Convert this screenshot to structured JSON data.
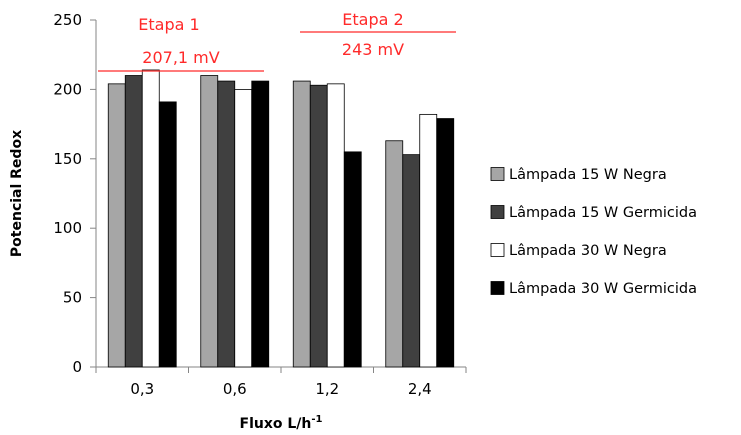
{
  "chart_data": {
    "type": "bar",
    "title": "",
    "xlabel_main": "Fluxo L/h",
    "xlabel_sup": "-1",
    "ylabel": "Potencial Redox",
    "ylim": [
      0,
      250
    ],
    "yticks": [
      "0",
      "50",
      "100",
      "150",
      "200",
      "250"
    ],
    "categories": [
      "0,3",
      "0,6",
      "1,2",
      "2,4"
    ],
    "series": [
      {
        "name": "Lâmpada 15 W Negra",
        "color": "#a6a6a6",
        "values": [
          204,
          210,
          206,
          163
        ]
      },
      {
        "name": "Lâmpada 15 W Germicida",
        "color": "#404040",
        "values": [
          210,
          206,
          203,
          153
        ]
      },
      {
        "name": "Lâmpada 30 W Negra",
        "color": "#ffffff",
        "values": [
          214,
          200,
          204,
          182
        ]
      },
      {
        "name": "Lâmpada 30 W Germicida",
        "color": "#000000",
        "values": [
          191,
          206,
          155,
          179
        ]
      }
    ],
    "annotations": [
      {
        "label": "Etapa 1",
        "value_text": "207,1 mV",
        "value": 207.1,
        "categories": [
          "0,3",
          "0,6"
        ]
      },
      {
        "label": "Etapa 2",
        "value_text": "243 mV",
        "value": 243,
        "categories": [
          "1,2",
          "2,4"
        ]
      }
    ],
    "annotation_color": "#ff2a2a",
    "legend_position": "right",
    "grid": false
  }
}
